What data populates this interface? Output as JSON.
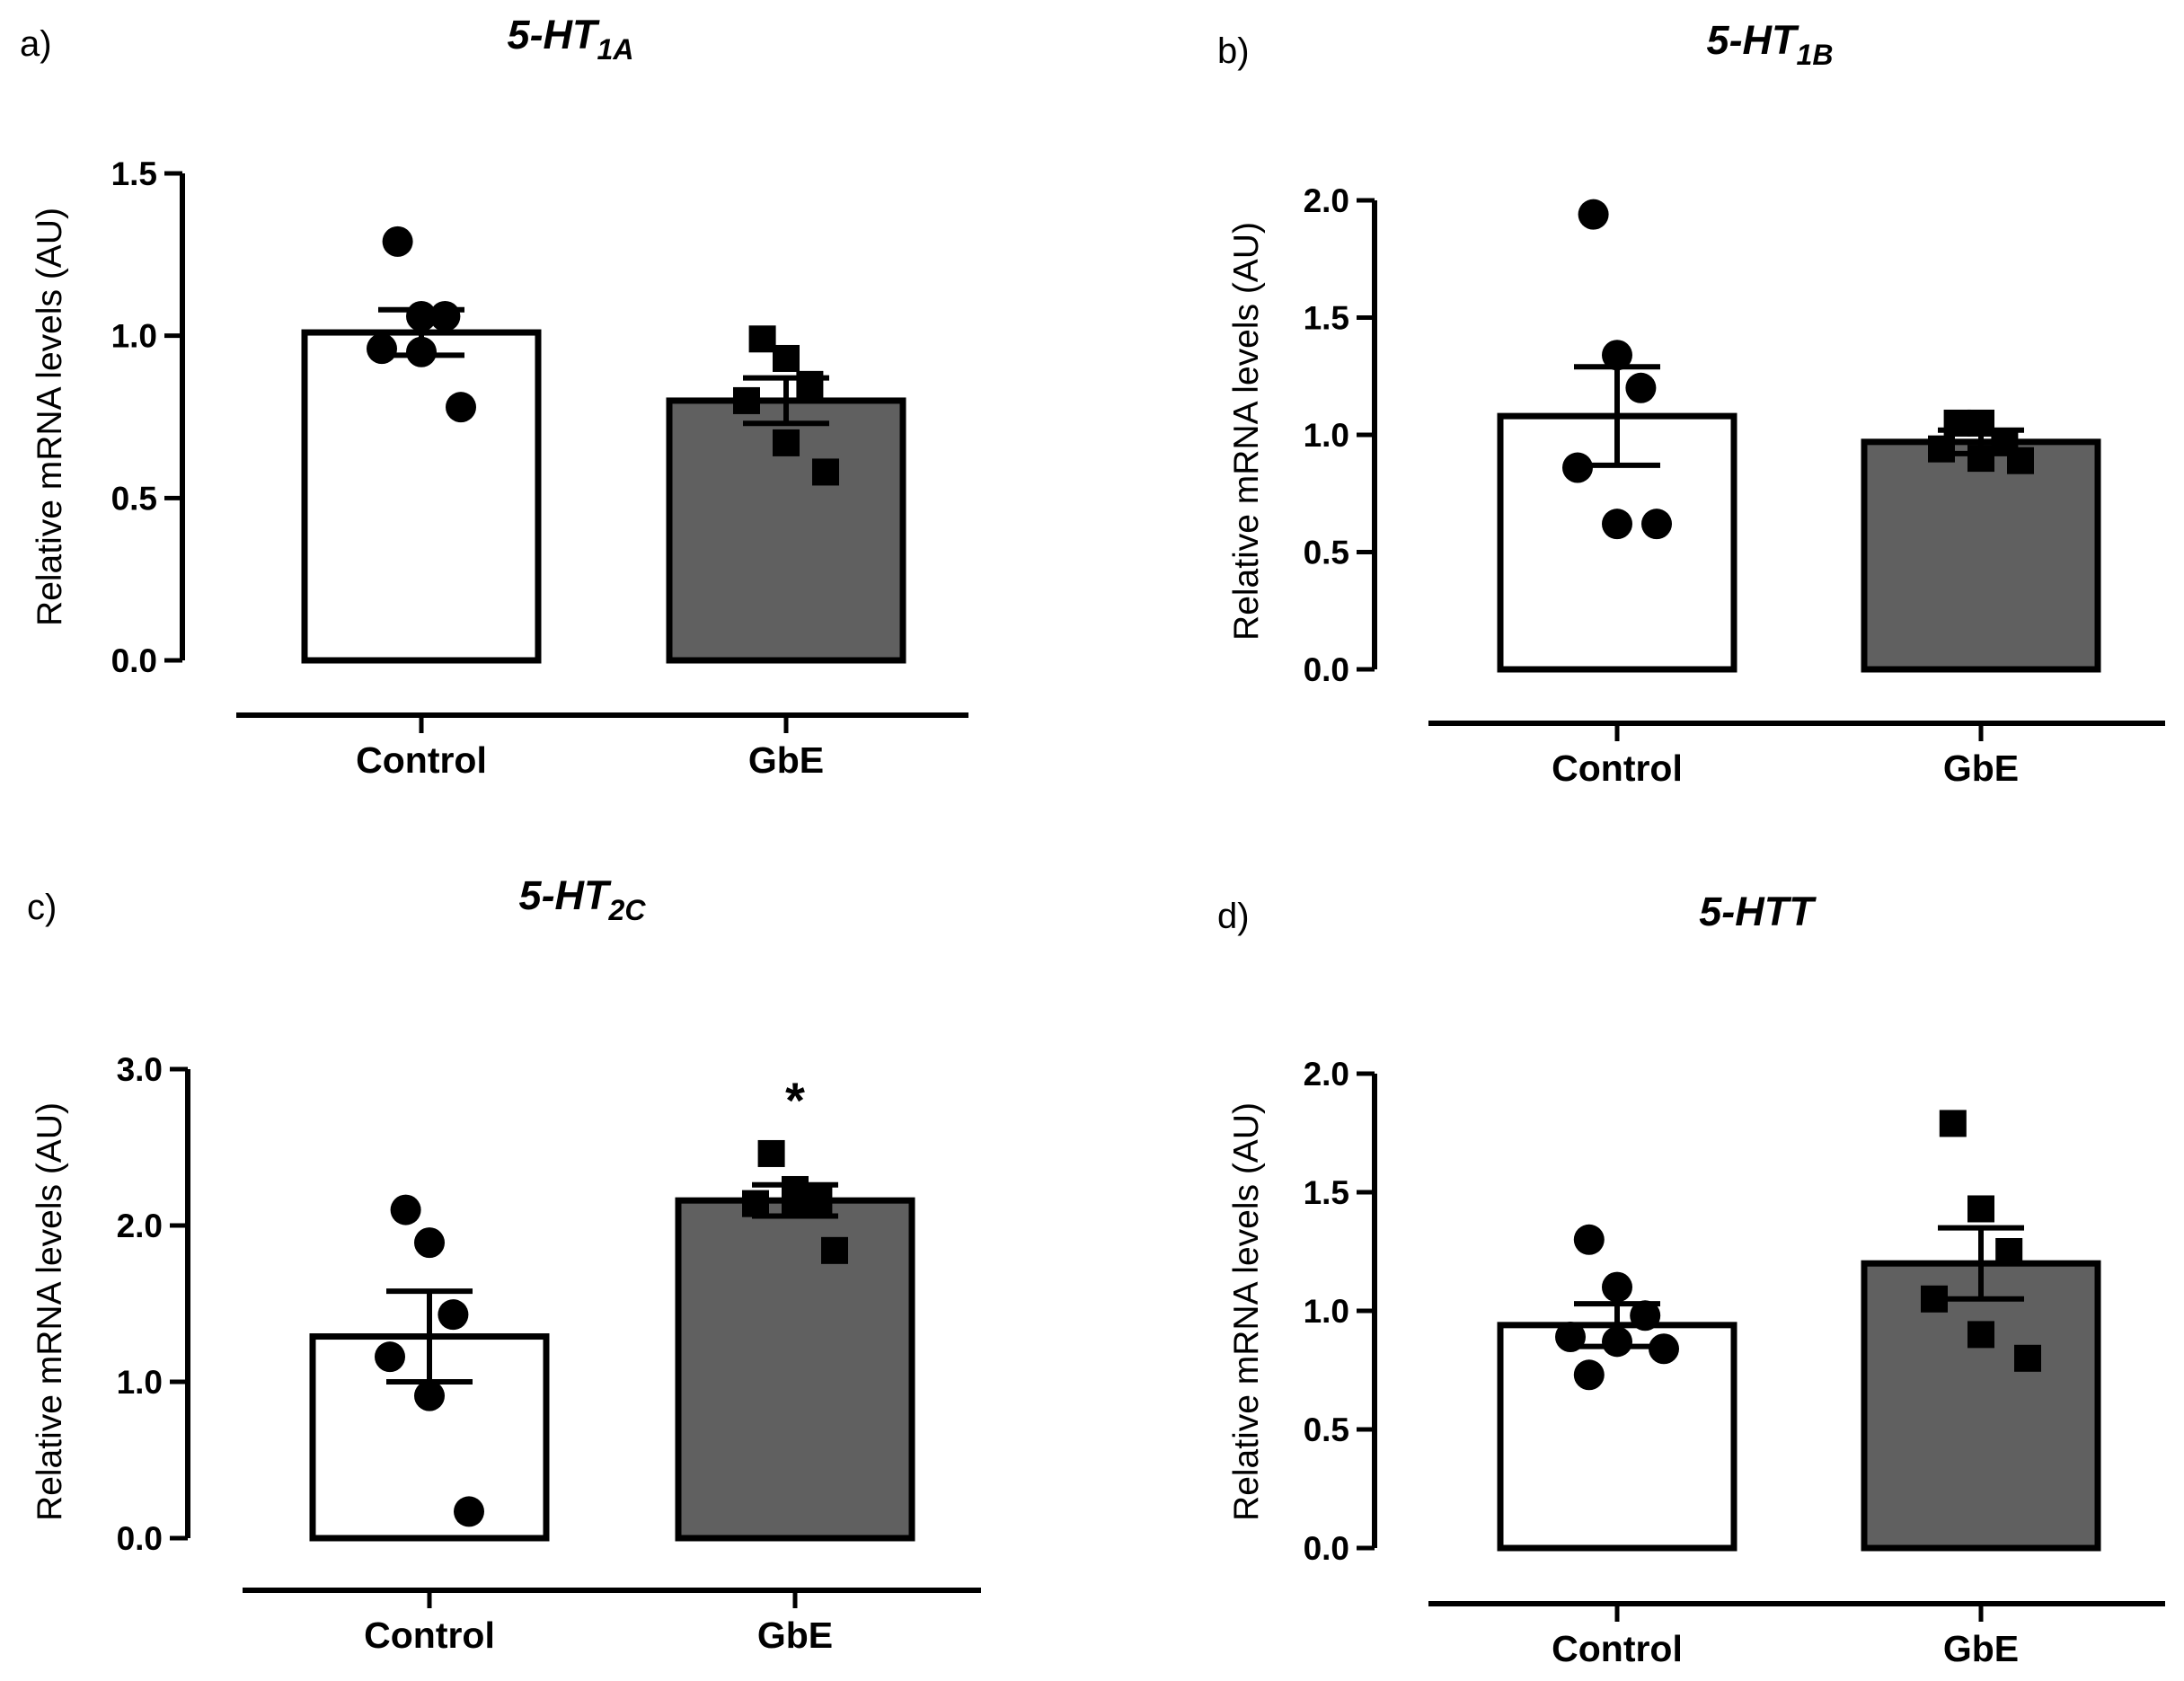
{
  "chart_data": [
    {
      "panel": "a)",
      "type": "bar",
      "title": {
        "main": "5-HT",
        "sub": "1A"
      },
      "ylabel": "Relative mRNA levels (AU)",
      "ylim": [
        0,
        1.5
      ],
      "yticks": [
        "0.0",
        "0.5",
        "1.0",
        "1.5"
      ],
      "categories": [
        "Control",
        "GbE"
      ],
      "bars": [
        {
          "category": "Control",
          "mean": 1.01,
          "sem": 0.07,
          "fill": "#ffffff",
          "marker": "circle",
          "points": [
            1.29,
            1.06,
            1.06,
            0.96,
            0.95,
            0.78
          ]
        },
        {
          "category": "GbE",
          "mean": 0.8,
          "sem": 0.07,
          "fill": "#606060",
          "marker": "square",
          "points": [
            0.99,
            0.93,
            0.85,
            0.8,
            0.67,
            0.58
          ]
        }
      ],
      "annotations": []
    },
    {
      "panel": "b)",
      "type": "bar",
      "title": {
        "main": "5-HT",
        "sub": "1B"
      },
      "ylabel": "Relative mRNA levels (AU)",
      "ylim": [
        0,
        2.0
      ],
      "yticks": [
        "0.0",
        "0.5",
        "1.0",
        "1.5",
        "2.0"
      ],
      "categories": [
        "Control",
        "GbE"
      ],
      "bars": [
        {
          "category": "Control",
          "mean": 1.08,
          "sem": 0.21,
          "fill": "#ffffff",
          "marker": "circle",
          "points": [
            1.94,
            1.34,
            1.2,
            0.86,
            0.62,
            0.62
          ]
        },
        {
          "category": "GbE",
          "mean": 0.97,
          "sem": 0.05,
          "fill": "#606060",
          "marker": "square",
          "points": [
            1.05,
            1.05,
            0.97,
            0.94,
            0.9,
            0.89
          ]
        }
      ],
      "annotations": []
    },
    {
      "panel": "c)",
      "type": "bar",
      "title": {
        "main": "5-HT",
        "sub": "2C"
      },
      "ylabel": "Relative mRNA levels (AU)",
      "ylim": [
        0,
        3.0
      ],
      "yticks": [
        "0.0",
        "1.0",
        "2.0",
        "3.0"
      ],
      "categories": [
        "Control",
        "GbE"
      ],
      "bars": [
        {
          "category": "Control",
          "mean": 1.29,
          "sem": 0.29,
          "fill": "#ffffff",
          "marker": "circle",
          "points": [
            2.1,
            1.89,
            1.43,
            1.16,
            0.91,
            0.17
          ]
        },
        {
          "category": "GbE",
          "mean": 2.16,
          "sem": 0.1,
          "fill": "#606060",
          "marker": "square",
          "points": [
            2.46,
            2.23,
            2.16,
            2.14,
            2.14,
            1.84
          ]
        }
      ],
      "annotations": [
        {
          "category": "GbE",
          "text": "*"
        }
      ]
    },
    {
      "panel": "d)",
      "type": "bar",
      "title": {
        "main": "5-HTT",
        "sub": ""
      },
      "ylabel": "Relative mRNA levels (AU)",
      "ylim": [
        0,
        2.0
      ],
      "yticks": [
        "0.0",
        "0.5",
        "1.0",
        "1.5",
        "2.0"
      ],
      "categories": [
        "Control",
        "GbE"
      ],
      "bars": [
        {
          "category": "Control",
          "mean": 0.94,
          "sem": 0.09,
          "fill": "#ffffff",
          "marker": "circle",
          "points": [
            1.3,
            1.1,
            0.98,
            0.89,
            0.87,
            0.84,
            0.73
          ]
        },
        {
          "category": "GbE",
          "mean": 1.2,
          "sem": 0.15,
          "fill": "#606060",
          "marker": "square",
          "points": [
            1.79,
            1.43,
            1.25,
            1.05,
            0.9,
            0.8
          ]
        }
      ],
      "annotations": []
    }
  ]
}
